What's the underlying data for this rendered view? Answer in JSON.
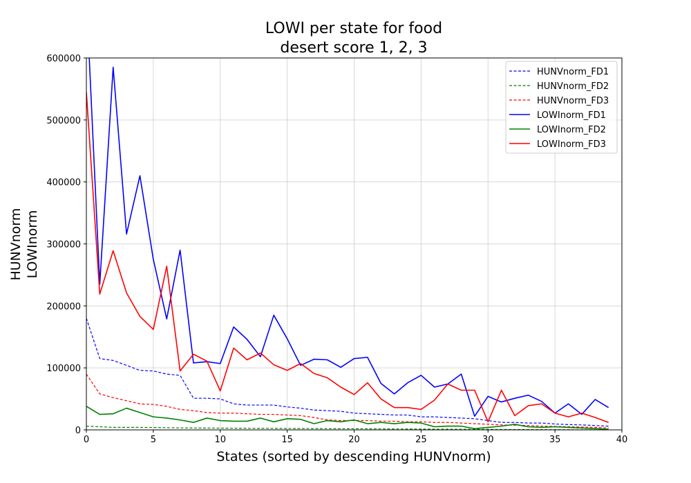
{
  "chart_data": {
    "type": "line",
    "title_lines": [
      "LOWI per state for food",
      "desert score 1, 2, 3"
    ],
    "xlabel": "States (sorted by descending HUNVnorm)",
    "ylabel_lines": [
      "HUNVnorm",
      "LOWInorm"
    ],
    "xlim": [
      0,
      40
    ],
    "ylim": [
      0,
      600000
    ],
    "xticks": [
      0,
      5,
      10,
      15,
      20,
      25,
      30,
      35,
      40
    ],
    "yticks": [
      0,
      100000,
      200000,
      300000,
      400000,
      500000,
      600000
    ],
    "grid": true,
    "legend_position": "top-right",
    "x": [
      0,
      1,
      2,
      3,
      4,
      5,
      6,
      7,
      8,
      9,
      10,
      11,
      12,
      13,
      14,
      15,
      16,
      17,
      18,
      19,
      20,
      21,
      22,
      23,
      24,
      25,
      26,
      27,
      28,
      29,
      30,
      31,
      32,
      33,
      34,
      35,
      36,
      37,
      38,
      39
    ],
    "series": [
      {
        "name": "HUNVnorm_FD1",
        "color": "#0000ff",
        "style": "dashed",
        "values": [
          180000,
          115000,
          112000,
          104000,
          96000,
          95000,
          90000,
          88000,
          51000,
          51000,
          50000,
          42000,
          40000,
          40000,
          40000,
          37000,
          35000,
          32000,
          31000,
          30000,
          27000,
          26000,
          25000,
          24000,
          24000,
          21000,
          21000,
          20000,
          19000,
          18000,
          15000,
          12000,
          12000,
          11000,
          11000,
          9500,
          8500,
          8000,
          7000,
          6000
        ]
      },
      {
        "name": "HUNVnorm_FD2",
        "color": "#008000",
        "style": "dashed",
        "values": [
          6000,
          5000,
          4000,
          4000,
          4000,
          3800,
          3500,
          3200,
          3000,
          2900,
          2800,
          2700,
          2600,
          2500,
          2400,
          2300,
          2200,
          2100,
          2000,
          1900,
          1800,
          1700,
          1600,
          1500,
          1400,
          1300,
          1200,
          1100,
          1000,
          900,
          800,
          700,
          600,
          500,
          400,
          300,
          250,
          200,
          150,
          100
        ]
      },
      {
        "name": "HUNVnorm_FD3",
        "color": "#ff0000",
        "style": "dashed",
        "values": [
          90000,
          58000,
          52000,
          47000,
          42000,
          41000,
          38000,
          33000,
          31000,
          28000,
          27000,
          27000,
          26000,
          25000,
          25000,
          24000,
          23000,
          20000,
          16000,
          15000,
          15000,
          15000,
          14000,
          14000,
          13000,
          13000,
          12000,
          12000,
          11000,
          10000,
          9000,
          8000,
          7500,
          7000,
          6000,
          5500,
          5000,
          4500,
          4000,
          3000
        ]
      },
      {
        "name": "LOWInorm_FD1",
        "color": "#0000ff",
        "style": "solid",
        "values": [
          700000,
          235000,
          585000,
          316000,
          410000,
          275000,
          179000,
          290000,
          108000,
          110000,
          107000,
          166000,
          146000,
          118000,
          185000,
          147000,
          104000,
          114000,
          113000,
          101000,
          115000,
          117000,
          75000,
          58000,
          76000,
          88000,
          69000,
          74000,
          90000,
          22000,
          54000,
          45000,
          51000,
          56000,
          46000,
          27000,
          42000,
          25000,
          49000,
          36000
        ]
      },
      {
        "name": "LOWInorm_FD2",
        "color": "#008000",
        "style": "solid",
        "values": [
          38000,
          25000,
          26000,
          35000,
          28000,
          21000,
          19000,
          16000,
          12000,
          19000,
          15000,
          14000,
          14000,
          19000,
          13000,
          18000,
          17000,
          10000,
          15000,
          13000,
          16000,
          10000,
          12000,
          10000,
          12000,
          11000,
          5000,
          6000,
          6000,
          2000,
          4000,
          6000,
          9000,
          5000,
          4000,
          5000,
          4000,
          3000,
          2000,
          1000
        ]
      },
      {
        "name": "LOWInorm_FD3",
        "color": "#ff0000",
        "style": "solid",
        "values": [
          545000,
          219000,
          289000,
          221000,
          183000,
          162000,
          264000,
          95000,
          122000,
          111000,
          63000,
          132000,
          113000,
          124000,
          105000,
          96000,
          107000,
          91000,
          84000,
          69000,
          57000,
          76000,
          50000,
          36000,
          36000,
          33000,
          48000,
          74000,
          64000,
          64000,
          13000,
          64000,
          23000,
          39000,
          42000,
          27000,
          21000,
          27000,
          20000,
          12000
        ]
      }
    ]
  }
}
